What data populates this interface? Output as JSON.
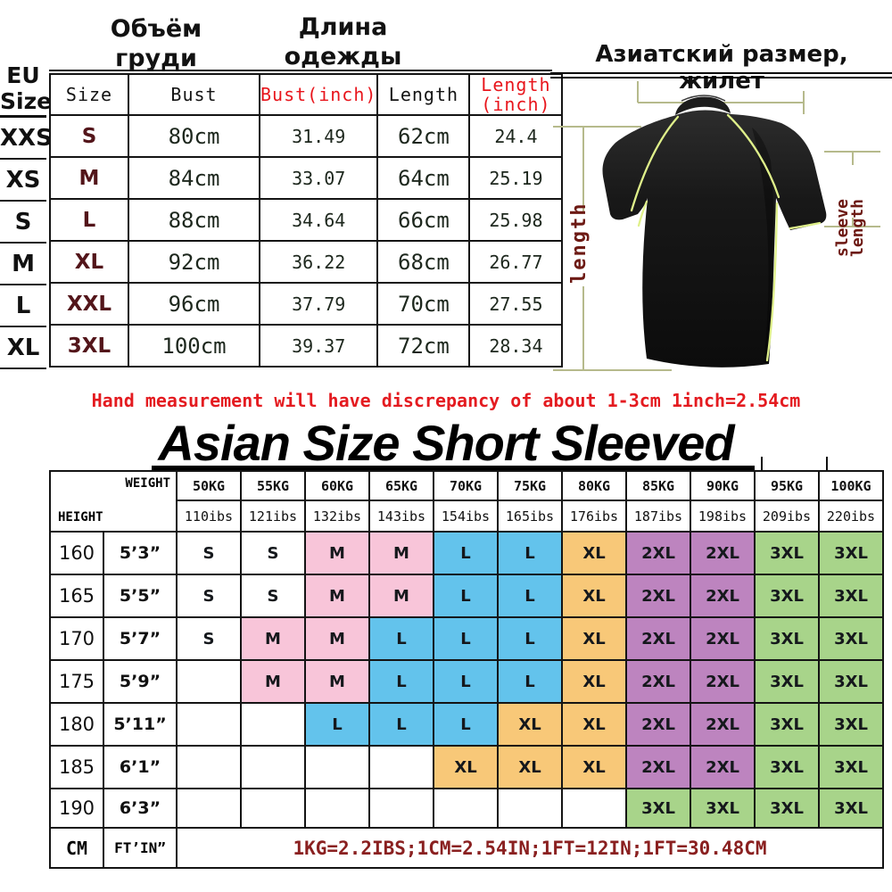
{
  "size_table": {
    "bust_group": [
      "Объём",
      "груди"
    ],
    "length_group": [
      "Длина",
      "одежды"
    ],
    "eu_header": [
      "EU",
      "Size"
    ],
    "eu_rows": [
      "XXS",
      "XS",
      "S",
      "M",
      "L",
      "XL"
    ],
    "headers": [
      "Size",
      "Bust",
      "Bust(inch)",
      "Length",
      "Length\n(inch)"
    ],
    "rows": [
      [
        "S",
        "80cm",
        "31.49",
        "62cm",
        "24.4"
      ],
      [
        "M",
        "84cm",
        "33.07",
        "64cm",
        "25.19"
      ],
      [
        "L",
        "88cm",
        "34.64",
        "66cm",
        "25.98"
      ],
      [
        "XL",
        "92cm",
        "36.22",
        "68cm",
        "26.77"
      ],
      [
        "XXL",
        "96cm",
        "37.79",
        "70cm",
        "27.55"
      ],
      [
        "3XL",
        "100cm",
        "39.37",
        "72cm",
        "28.34"
      ]
    ]
  },
  "product": {
    "title": "Азиатский размер, жилет",
    "length_label": "length",
    "sleeve_length_label": "sleeve\nlength",
    "shirt_color": "#161616",
    "piping_color": "#dff08a",
    "measure_line_color": "#b6ba8c"
  },
  "disclaimer": "Hand measurement will have discrepancy of about 1-3cm 1inch=2.54cm",
  "section_title": "Asian Size Short Sleeved",
  "size_matrix": {
    "weight_label": "WEIGHT",
    "height_label": "HEIGHT",
    "weights_kg": [
      "50KG",
      "55KG",
      "60KG",
      "65KG",
      "70KG",
      "75KG",
      "80KG",
      "85KG",
      "90KG",
      "95KG",
      "100KG"
    ],
    "weights_lbs": [
      "110ibs",
      "121ibs",
      "132ibs",
      "143ibs",
      "154ibs",
      "165ibs",
      "176ibs",
      "187ibs",
      "198ibs",
      "209ibs",
      "220ibs"
    ],
    "rows": [
      {
        "height_cm": "160",
        "height_ft": "5’3”",
        "cells": [
          "S",
          "S",
          "M",
          "M",
          "L",
          "L",
          "XL",
          "2XL",
          "2XL",
          "3XL",
          "3XL"
        ]
      },
      {
        "height_cm": "165",
        "height_ft": "5’5”",
        "cells": [
          "S",
          "S",
          "M",
          "M",
          "L",
          "L",
          "XL",
          "2XL",
          "2XL",
          "3XL",
          "3XL"
        ]
      },
      {
        "height_cm": "170",
        "height_ft": "5’7”",
        "cells": [
          "S",
          "M",
          "M",
          "L",
          "L",
          "L",
          "XL",
          "2XL",
          "2XL",
          "3XL",
          "3XL"
        ]
      },
      {
        "height_cm": "175",
        "height_ft": "5’9”",
        "cells": [
          "",
          "M",
          "M",
          "L",
          "L",
          "L",
          "XL",
          "2XL",
          "2XL",
          "3XL",
          "3XL"
        ]
      },
      {
        "height_cm": "180",
        "height_ft": "5’11”",
        "cells": [
          "",
          "",
          "L",
          "L",
          "L",
          "XL",
          "XL",
          "2XL",
          "2XL",
          "3XL",
          "3XL"
        ]
      },
      {
        "height_cm": "185",
        "height_ft": "6’1”",
        "cells": [
          "",
          "",
          "",
          "",
          "XL",
          "XL",
          "XL",
          "2XL",
          "2XL",
          "3XL",
          "3XL"
        ]
      },
      {
        "height_cm": "190",
        "height_ft": "6’3”",
        "cells": [
          "",
          "",
          "",
          "",
          "",
          "",
          "",
          "3XL",
          "3XL",
          "3XL",
          "3XL"
        ]
      }
    ],
    "footer_cm": "CM",
    "footer_ft": "FT’IN”",
    "footer_note": "1KG=2.2IBS;1CM=2.54IN;1FT=12IN;1FT=30.48CM",
    "colors": {
      "S": "#ffffff",
      "M": "#f8c5d9",
      "L": "#63c3ec",
      "XL": "#f8c878",
      "2XL": "#bd84bf",
      "3XL": "#a8d48a"
    }
  }
}
